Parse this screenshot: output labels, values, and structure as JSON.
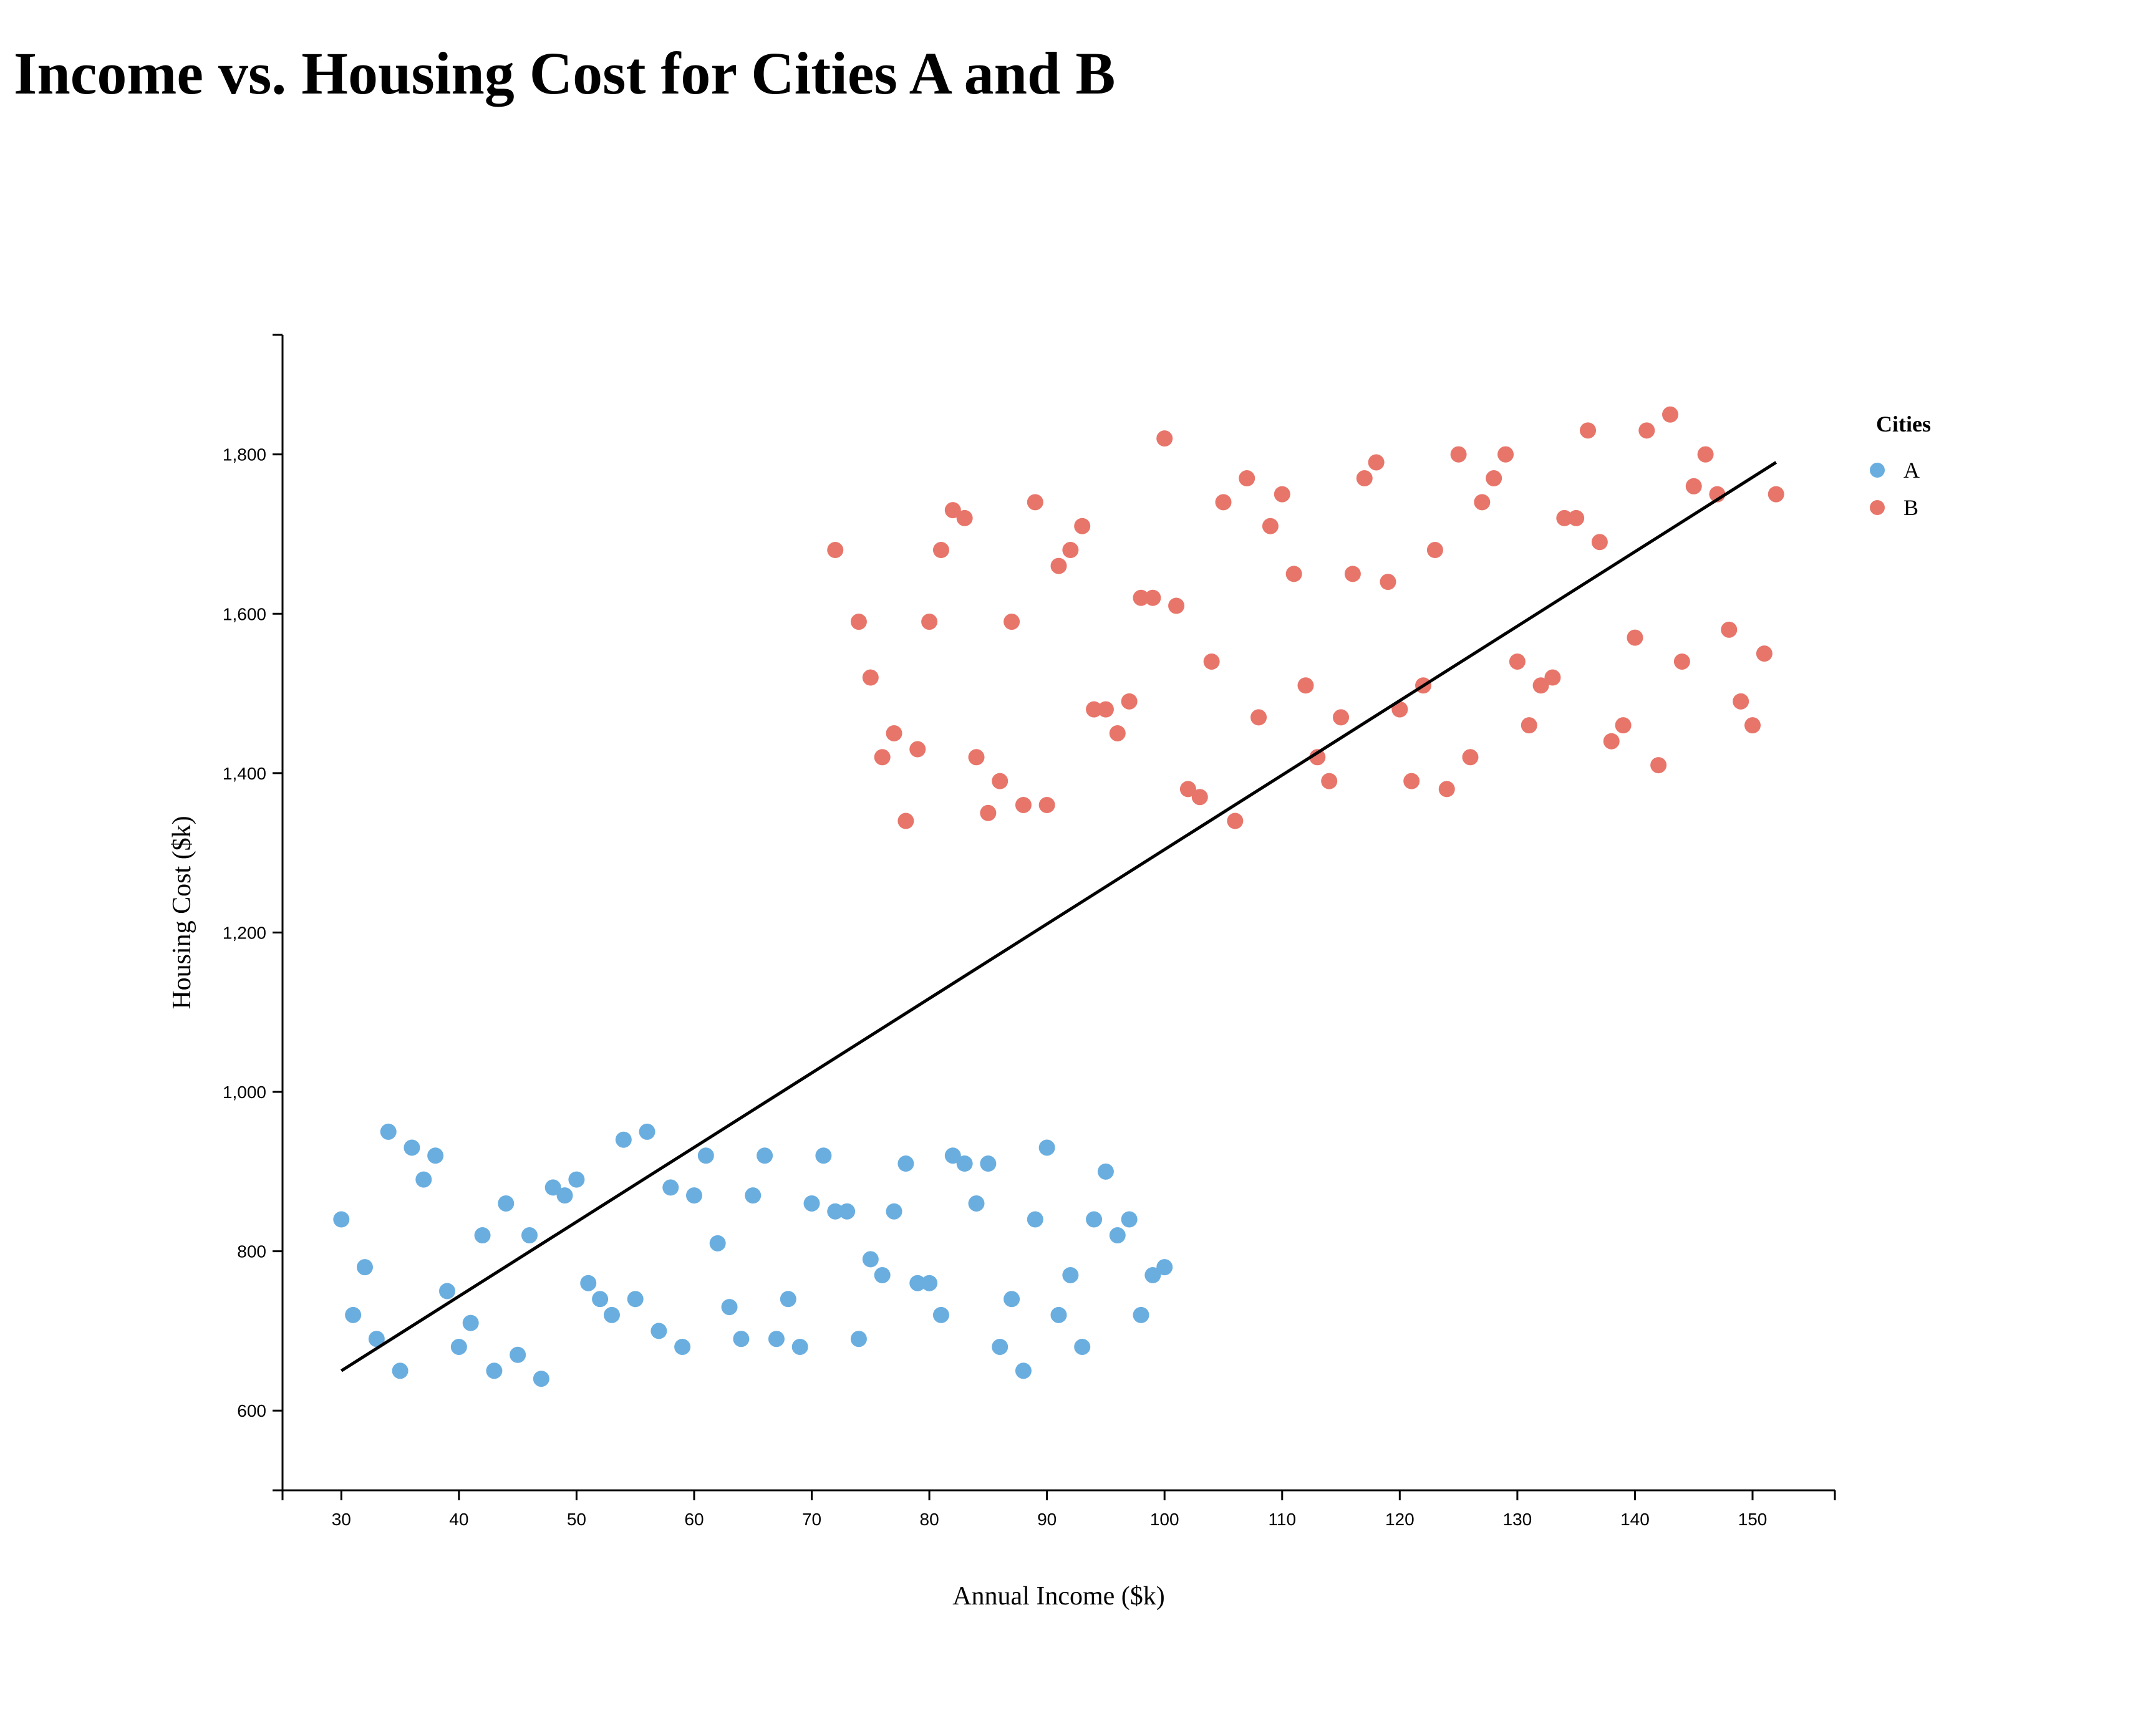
{
  "chart_data": {
    "type": "scatter",
    "title": "Income vs. Housing Cost for Cities A and B",
    "xlabel": "Annual Income ($k)",
    "ylabel": "Housing Cost ($k)",
    "xlim": [
      25,
      157
    ],
    "ylim": [
      500,
      1950
    ],
    "xticks": [
      30,
      40,
      50,
      60,
      70,
      80,
      90,
      100,
      110,
      120,
      130,
      140,
      150
    ],
    "xtick_labels": [
      "30",
      "40",
      "50",
      "60",
      "70",
      "80",
      "90",
      "100",
      "110",
      "120",
      "130",
      "140",
      "150"
    ],
    "yticks": [
      600,
      800,
      1000,
      1200,
      1400,
      1600,
      1800
    ],
    "ytick_labels": [
      "600",
      "800",
      "1,000",
      "1,200",
      "1,400",
      "1,600",
      "1,800"
    ],
    "grid": false,
    "legend": {
      "title": "Cities",
      "placement": "top-right",
      "entries": [
        "A",
        "B"
      ]
    },
    "series": [
      {
        "name": "A",
        "color": "#6aaee0",
        "points": [
          [
            30,
            840
          ],
          [
            31,
            720
          ],
          [
            32,
            780
          ],
          [
            33,
            690
          ],
          [
            34,
            950
          ],
          [
            35,
            650
          ],
          [
            36,
            930
          ],
          [
            37,
            890
          ],
          [
            38,
            920
          ],
          [
            39,
            750
          ],
          [
            40,
            680
          ],
          [
            41,
            710
          ],
          [
            42,
            820
          ],
          [
            43,
            650
          ],
          [
            44,
            860
          ],
          [
            45,
            670
          ],
          [
            46,
            820
          ],
          [
            47,
            640
          ],
          [
            48,
            880
          ],
          [
            49,
            870
          ],
          [
            50,
            890
          ],
          [
            51,
            760
          ],
          [
            52,
            740
          ],
          [
            53,
            720
          ],
          [
            54,
            940
          ],
          [
            55,
            740
          ],
          [
            56,
            950
          ],
          [
            57,
            700
          ],
          [
            58,
            880
          ],
          [
            59,
            680
          ],
          [
            60,
            870
          ],
          [
            61,
            920
          ],
          [
            62,
            810
          ],
          [
            63,
            730
          ],
          [
            64,
            690
          ],
          [
            65,
            870
          ],
          [
            66,
            920
          ],
          [
            67,
            690
          ],
          [
            68,
            740
          ],
          [
            69,
            680
          ],
          [
            70,
            860
          ],
          [
            71,
            920
          ],
          [
            72,
            850
          ],
          [
            73,
            850
          ],
          [
            74,
            690
          ],
          [
            75,
            790
          ],
          [
            76,
            770
          ],
          [
            77,
            850
          ],
          [
            78,
            910
          ],
          [
            79,
            760
          ],
          [
            80,
            760
          ],
          [
            81,
            720
          ],
          [
            82,
            920
          ],
          [
            83,
            910
          ],
          [
            84,
            860
          ],
          [
            85,
            910
          ],
          [
            86,
            680
          ],
          [
            87,
            740
          ],
          [
            88,
            650
          ],
          [
            89,
            840
          ],
          [
            90,
            930
          ],
          [
            91,
            720
          ],
          [
            92,
            770
          ],
          [
            93,
            680
          ],
          [
            94,
            840
          ],
          [
            95,
            900
          ],
          [
            96,
            820
          ],
          [
            97,
            840
          ],
          [
            98,
            720
          ],
          [
            99,
            770
          ],
          [
            100,
            780
          ]
        ]
      },
      {
        "name": "B",
        "color": "#e8756a",
        "points": [
          [
            72,
            1680
          ],
          [
            74,
            1590
          ],
          [
            75,
            1520
          ],
          [
            76,
            1420
          ],
          [
            77,
            1450
          ],
          [
            78,
            1340
          ],
          [
            79,
            1430
          ],
          [
            80,
            1590
          ],
          [
            81,
            1680
          ],
          [
            82,
            1730
          ],
          [
            83,
            1720
          ],
          [
            84,
            1420
          ],
          [
            85,
            1350
          ],
          [
            86,
            1390
          ],
          [
            87,
            1590
          ],
          [
            88,
            1360
          ],
          [
            89,
            1740
          ],
          [
            90,
            1360
          ],
          [
            91,
            1660
          ],
          [
            92,
            1680
          ],
          [
            93,
            1710
          ],
          [
            94,
            1480
          ],
          [
            95,
            1480
          ],
          [
            96,
            1450
          ],
          [
            97,
            1490
          ],
          [
            98,
            1620
          ],
          [
            99,
            1620
          ],
          [
            100,
            1820
          ],
          [
            101,
            1610
          ],
          [
            102,
            1380
          ],
          [
            103,
            1370
          ],
          [
            104,
            1540
          ],
          [
            105,
            1740
          ],
          [
            106,
            1340
          ],
          [
            107,
            1770
          ],
          [
            108,
            1470
          ],
          [
            109,
            1710
          ],
          [
            110,
            1750
          ],
          [
            111,
            1650
          ],
          [
            112,
            1510
          ],
          [
            113,
            1420
          ],
          [
            114,
            1390
          ],
          [
            115,
            1470
          ],
          [
            116,
            1650
          ],
          [
            117,
            1770
          ],
          [
            118,
            1790
          ],
          [
            119,
            1640
          ],
          [
            120,
            1480
          ],
          [
            121,
            1390
          ],
          [
            122,
            1510
          ],
          [
            123,
            1680
          ],
          [
            124,
            1380
          ],
          [
            125,
            1800
          ],
          [
            126,
            1420
          ],
          [
            127,
            1740
          ],
          [
            128,
            1770
          ],
          [
            129,
            1800
          ],
          [
            130,
            1540
          ],
          [
            131,
            1460
          ],
          [
            132,
            1510
          ],
          [
            133,
            1520
          ],
          [
            134,
            1720
          ],
          [
            135,
            1720
          ],
          [
            136,
            1830
          ],
          [
            137,
            1690
          ],
          [
            138,
            1440
          ],
          [
            139,
            1460
          ],
          [
            140,
            1570
          ],
          [
            141,
            1830
          ],
          [
            142,
            1410
          ],
          [
            143,
            1850
          ],
          [
            144,
            1540
          ],
          [
            145,
            1760
          ],
          [
            146,
            1800
          ],
          [
            147,
            1750
          ],
          [
            148,
            1580
          ],
          [
            149,
            1490
          ],
          [
            150,
            1460
          ],
          [
            151,
            1550
          ],
          [
            152,
            1750
          ]
        ]
      }
    ],
    "trend_line": {
      "color": "#000000",
      "points": [
        [
          30,
          650
        ],
        [
          152,
          1790
        ]
      ]
    }
  }
}
